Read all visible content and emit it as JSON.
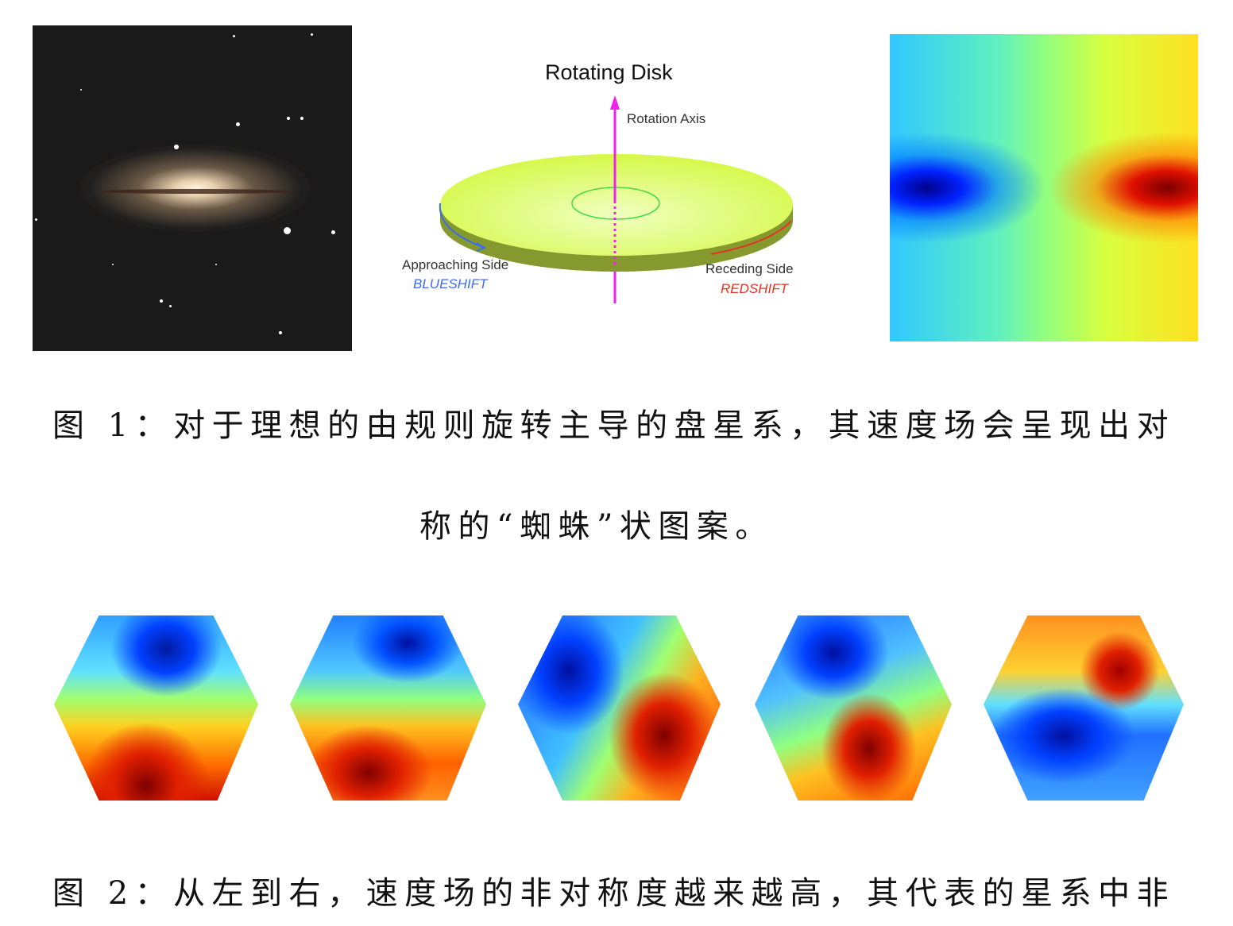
{
  "figure1": {
    "photo_alt": "galaxy photo",
    "diagram": {
      "title": "Rotating Disk",
      "rotation_axis": "Rotation Axis",
      "approaching_side": "Approaching Side",
      "blueshift": "BLUESHIFT",
      "receding_side": "Receding Side",
      "redshift": "REDSHIFT",
      "colors": {
        "disk": "#d8f850",
        "disk_edge": "#86992e",
        "axis": "#ee22ee",
        "blue": "#3a6cf0",
        "red": "#e83020",
        "orbit": "#44dd44"
      }
    },
    "caption_line1": "图 1：对于理想的由规则旋转主导的盘星系，其速度场会呈现出对",
    "caption_line2": "称的“蜘蛛”状图案。"
  },
  "figure2": {
    "panels": 5,
    "caption_line1": "图 2：从左到右，速度场的非对称度越来越高，其代表的星系中非"
  }
}
